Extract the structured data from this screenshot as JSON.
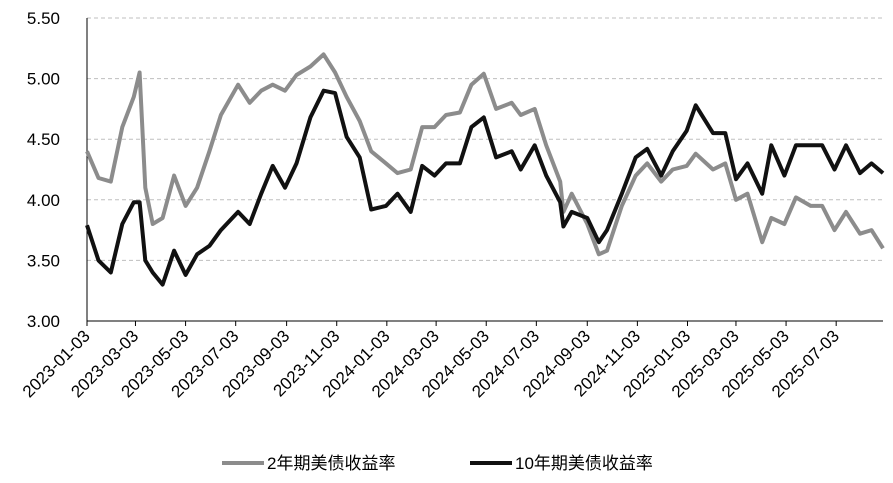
{
  "chart_data": {
    "type": "line",
    "x": [
      "2023-01-03",
      "2023-01-17",
      "2023-02-01",
      "2023-02-15",
      "2023-03-01",
      "2023-03-08",
      "2023-03-15",
      "2023-03-24",
      "2023-04-05",
      "2023-04-19",
      "2023-05-03",
      "2023-05-17",
      "2023-06-01",
      "2023-06-15",
      "2023-07-06",
      "2023-07-20",
      "2023-08-03",
      "2023-08-17",
      "2023-09-01",
      "2023-09-15",
      "2023-10-02",
      "2023-10-18",
      "2023-11-01",
      "2023-11-15",
      "2023-12-01",
      "2023-12-15",
      "2024-01-02",
      "2024-01-16",
      "2024-02-01",
      "2024-02-15",
      "2024-03-01",
      "2024-03-15",
      "2024-04-01",
      "2024-04-15",
      "2024-04-30",
      "2024-05-15",
      "2024-06-03",
      "2024-06-14",
      "2024-07-01",
      "2024-07-15",
      "2024-08-01",
      "2024-08-05",
      "2024-08-15",
      "2024-09-03",
      "2024-09-17",
      "2024-09-27",
      "2024-10-15",
      "2024-11-01",
      "2024-11-15",
      "2024-12-02",
      "2024-12-16",
      "2025-01-02",
      "2025-01-13",
      "2025-02-03",
      "2025-02-18",
      "2025-03-03",
      "2025-03-17",
      "2025-04-04",
      "2025-04-15",
      "2025-05-01",
      "2025-05-15",
      "2025-06-02",
      "2025-06-16",
      "2025-07-01",
      "2025-07-15",
      "2025-08-01",
      "2025-08-15",
      "2025-08-29"
    ],
    "series": [
      {
        "name": "2年期美债收益率",
        "color": "#8c8c8c",
        "values": [
          4.4,
          4.18,
          4.15,
          4.6,
          4.85,
          5.05,
          4.1,
          3.8,
          3.85,
          4.2,
          3.95,
          4.1,
          4.4,
          4.7,
          4.95,
          4.8,
          4.9,
          4.95,
          4.9,
          5.03,
          5.1,
          5.2,
          5.05,
          4.85,
          4.65,
          4.4,
          4.3,
          4.22,
          4.25,
          4.6,
          4.6,
          4.7,
          4.72,
          4.95,
          5.04,
          4.75,
          4.8,
          4.7,
          4.75,
          4.45,
          4.15,
          3.9,
          4.05,
          3.8,
          3.55,
          3.58,
          3.95,
          4.2,
          4.3,
          4.15,
          4.25,
          4.28,
          4.38,
          4.25,
          4.3,
          4.0,
          4.05,
          3.65,
          3.85,
          3.8,
          4.02,
          3.95,
          3.95,
          3.75,
          3.9,
          3.72,
          3.75,
          3.6
        ]
      },
      {
        "name": "10年期美债收益率",
        "color": "#111111",
        "values": [
          3.79,
          3.5,
          3.4,
          3.8,
          3.98,
          3.98,
          3.5,
          3.4,
          3.3,
          3.58,
          3.38,
          3.55,
          3.62,
          3.75,
          3.9,
          3.8,
          4.05,
          4.28,
          4.1,
          4.3,
          4.68,
          4.9,
          4.88,
          4.52,
          4.35,
          3.92,
          3.95,
          4.05,
          3.9,
          4.28,
          4.2,
          4.3,
          4.3,
          4.6,
          4.68,
          4.35,
          4.4,
          4.25,
          4.45,
          4.2,
          3.98,
          3.78,
          3.9,
          3.85,
          3.65,
          3.75,
          4.05,
          4.35,
          4.42,
          4.2,
          4.4,
          4.57,
          4.78,
          4.55,
          4.55,
          4.17,
          4.3,
          4.05,
          4.45,
          4.2,
          4.45,
          4.45,
          4.45,
          4.25,
          4.45,
          4.22,
          4.3,
          4.22
        ]
      }
    ],
    "xlim": [
      "2023-01-03",
      "2025-08-29"
    ],
    "xticks": [
      "2023-01-03",
      "2023-03-03",
      "2023-05-03",
      "2023-07-03",
      "2023-09-03",
      "2023-11-03",
      "2024-01-03",
      "2024-03-03",
      "2024-05-03",
      "2024-07-03",
      "2024-09-03",
      "2024-11-03",
      "2025-01-03",
      "2025-03-03",
      "2025-05-03",
      "2025-07-03"
    ],
    "ylim": [
      3,
      5.5
    ],
    "yticks": [
      {
        "value": 3,
        "label": "3.00"
      },
      {
        "value": 3.5,
        "label": "3.50"
      },
      {
        "value": 4,
        "label": "4.00"
      },
      {
        "value": 4.5,
        "label": "4.50"
      },
      {
        "value": 5,
        "label": "5.00"
      },
      {
        "value": 5.5,
        "label": "5.50"
      }
    ],
    "grid": true,
    "legend": "bottom"
  }
}
